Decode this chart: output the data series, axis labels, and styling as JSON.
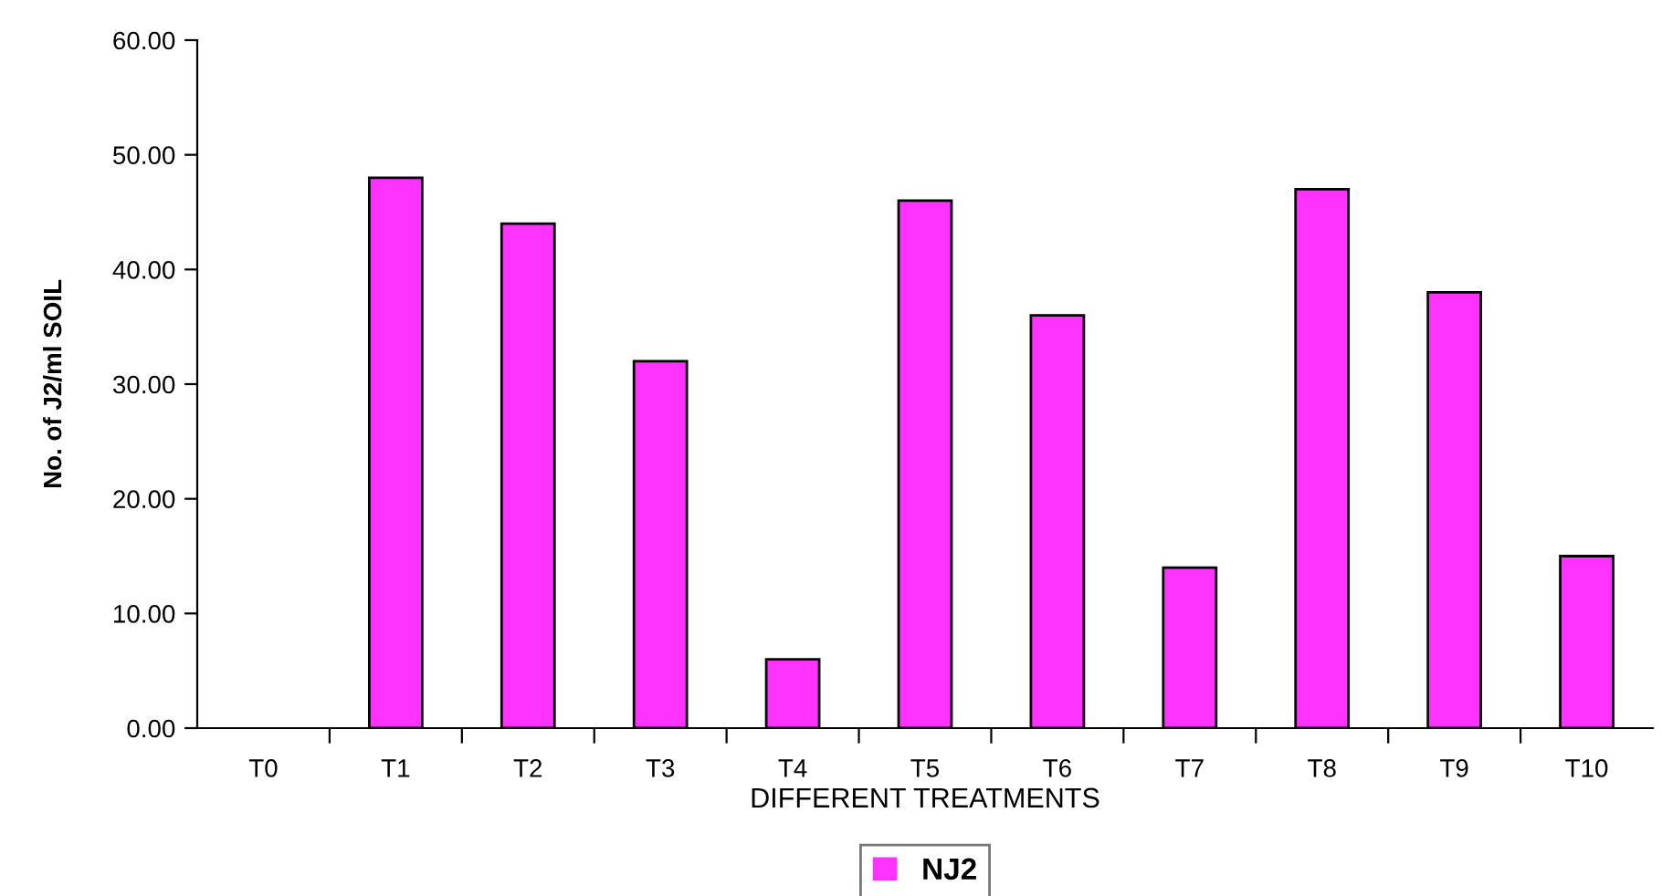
{
  "chart_data": {
    "type": "bar",
    "xlabel": "DIFFERENT TREATMENTS",
    "ylabel": "No. of J2/ml SOIL",
    "categories": [
      "T0",
      "T1",
      "T2",
      "T3",
      "T4",
      "T5",
      "T6",
      "T7",
      "T8",
      "T9",
      "T10"
    ],
    "series": [
      {
        "name": "NJ2",
        "color": "#ff33ff",
        "values": [
          0,
          48,
          44,
          32,
          6,
          46,
          36,
          14,
          47,
          38,
          15
        ]
      }
    ],
    "ylim": [
      0,
      60
    ],
    "yticks": [
      {
        "value": 0,
        "label": "0.00"
      },
      {
        "value": 10,
        "label": "10.00"
      },
      {
        "value": 20,
        "label": "20.00"
      },
      {
        "value": 30,
        "label": "30.00"
      },
      {
        "value": 40,
        "label": "40.00"
      },
      {
        "value": 50,
        "label": "50.00"
      },
      {
        "value": 60,
        "label": "60.00"
      }
    ],
    "grid": false,
    "legend": "bottom"
  }
}
